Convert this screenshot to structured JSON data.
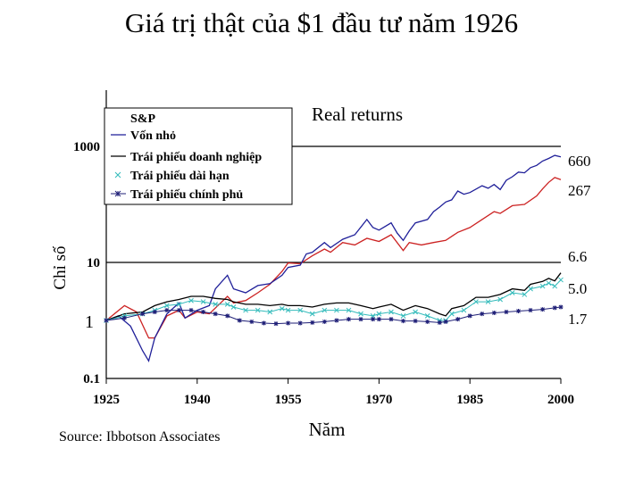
{
  "title": "Giá trị thật của $1 đầu tư năm 1926",
  "source": "Source: Ibbotson Associates",
  "chart_data": {
    "type": "line",
    "title": "Real returns",
    "xlabel": "Năm",
    "ylabel": "Chỉ số",
    "y_scale": "log",
    "xlim": [
      1925,
      2000
    ],
    "ylim": [
      0.1,
      10000
    ],
    "x_ticks": [
      "1925",
      "1940",
      "1955",
      "1970",
      "1985",
      "2000"
    ],
    "y_ticks": [
      "0.1",
      "1",
      "10",
      "1000"
    ],
    "reference_lines": [
      1000,
      10
    ],
    "annotations": [
      "660",
      "267",
      "6.6",
      "5.0",
      "1.7",
      "1"
    ],
    "legend_placement": "top-left",
    "series": [
      {
        "name": "S&P",
        "color": "#cc2222",
        "style": "line",
        "end_label": "267",
        "points": [
          [
            1925,
            1
          ],
          [
            1928,
            1.8
          ],
          [
            1930,
            1.4
          ],
          [
            1932,
            0.5
          ],
          [
            1933,
            0.5
          ],
          [
            1935,
            1.2
          ],
          [
            1937,
            1.5
          ],
          [
            1938,
            1.1
          ],
          [
            1940,
            1.4
          ],
          [
            1942,
            1.3
          ],
          [
            1945,
            2.6
          ],
          [
            1946,
            2.0
          ],
          [
            1948,
            2.2
          ],
          [
            1950,
            3.0
          ],
          [
            1952,
            4.2
          ],
          [
            1954,
            7.0
          ],
          [
            1955,
            9.8
          ],
          [
            1957,
            9.5
          ],
          [
            1959,
            13
          ],
          [
            1961,
            17
          ],
          [
            1962,
            15
          ],
          [
            1964,
            22
          ],
          [
            1966,
            20
          ],
          [
            1968,
            26
          ],
          [
            1970,
            23
          ],
          [
            1972,
            30
          ],
          [
            1974,
            16
          ],
          [
            1975,
            22
          ],
          [
            1977,
            20
          ],
          [
            1979,
            22
          ],
          [
            1981,
            24
          ],
          [
            1983,
            33
          ],
          [
            1985,
            40
          ],
          [
            1987,
            55
          ],
          [
            1989,
            75
          ],
          [
            1990,
            70
          ],
          [
            1992,
            95
          ],
          [
            1994,
            100
          ],
          [
            1996,
            140
          ],
          [
            1997,
            185
          ],
          [
            1998,
            240
          ],
          [
            1999,
            290
          ],
          [
            2000,
            267
          ]
        ]
      },
      {
        "name": "Vốn nhỏ",
        "color": "#1f1f99",
        "style": "line",
        "end_label": "660",
        "points": [
          [
            1925,
            1
          ],
          [
            1927,
            1.2
          ],
          [
            1929,
            0.8
          ],
          [
            1931,
            0.3
          ],
          [
            1932,
            0.2
          ],
          [
            1933,
            0.5
          ],
          [
            1935,
            1.3
          ],
          [
            1937,
            2.0
          ],
          [
            1938,
            1.1
          ],
          [
            1940,
            1.5
          ],
          [
            1942,
            1.8
          ],
          [
            1943,
            3.5
          ],
          [
            1945,
            6.0
          ],
          [
            1946,
            3.5
          ],
          [
            1948,
            3.0
          ],
          [
            1950,
            4.0
          ],
          [
            1952,
            4.3
          ],
          [
            1954,
            6.0
          ],
          [
            1955,
            8.2
          ],
          [
            1957,
            9.0
          ],
          [
            1958,
            14
          ],
          [
            1959,
            15
          ],
          [
            1961,
            22
          ],
          [
            1962,
            18
          ],
          [
            1964,
            25
          ],
          [
            1966,
            30
          ],
          [
            1968,
            55
          ],
          [
            1969,
            40
          ],
          [
            1970,
            36
          ],
          [
            1972,
            48
          ],
          [
            1973,
            32
          ],
          [
            1974,
            24
          ],
          [
            1975,
            35
          ],
          [
            1976,
            48
          ],
          [
            1978,
            55
          ],
          [
            1979,
            75
          ],
          [
            1980,
            90
          ],
          [
            1981,
            110
          ],
          [
            1982,
            120
          ],
          [
            1983,
            170
          ],
          [
            1984,
            150
          ],
          [
            1985,
            160
          ],
          [
            1987,
            210
          ],
          [
            1988,
            190
          ],
          [
            1989,
            220
          ],
          [
            1990,
            180
          ],
          [
            1991,
            260
          ],
          [
            1992,
            300
          ],
          [
            1993,
            360
          ],
          [
            1994,
            350
          ],
          [
            1995,
            430
          ],
          [
            1996,
            470
          ],
          [
            1997,
            560
          ],
          [
            1998,
            620
          ],
          [
            1999,
            700
          ],
          [
            2000,
            660
          ]
        ]
      },
      {
        "name": "Trái phiếu doanh nghiệp",
        "color": "#000000",
        "style": "line",
        "end_label": "6.6",
        "points": [
          [
            1925,
            1
          ],
          [
            1928,
            1.3
          ],
          [
            1931,
            1.4
          ],
          [
            1933,
            1.8
          ],
          [
            1935,
            2.1
          ],
          [
            1937,
            2.3
          ],
          [
            1939,
            2.6
          ],
          [
            1941,
            2.6
          ],
          [
            1943,
            2.4
          ],
          [
            1945,
            2.3
          ],
          [
            1946,
            2.1
          ],
          [
            1948,
            1.9
          ],
          [
            1950,
            1.9
          ],
          [
            1952,
            1.8
          ],
          [
            1954,
            1.9
          ],
          [
            1955,
            1.8
          ],
          [
            1957,
            1.8
          ],
          [
            1959,
            1.7
          ],
          [
            1961,
            1.9
          ],
          [
            1963,
            2.0
          ],
          [
            1965,
            2.0
          ],
          [
            1967,
            1.8
          ],
          [
            1969,
            1.6
          ],
          [
            1970,
            1.7
          ],
          [
            1972,
            1.9
          ],
          [
            1974,
            1.5
          ],
          [
            1976,
            1.8
          ],
          [
            1978,
            1.6
          ],
          [
            1980,
            1.3
          ],
          [
            1981,
            1.2
          ],
          [
            1982,
            1.6
          ],
          [
            1984,
            1.8
          ],
          [
            1986,
            2.5
          ],
          [
            1988,
            2.5
          ],
          [
            1990,
            2.8
          ],
          [
            1992,
            3.5
          ],
          [
            1994,
            3.3
          ],
          [
            1995,
            4.2
          ],
          [
            1997,
            4.7
          ],
          [
            1998,
            5.3
          ],
          [
            1999,
            4.8
          ],
          [
            2000,
            6.6
          ]
        ]
      },
      {
        "name": "Trái phiếu dài hạn",
        "color": "#33bbbb",
        "style": "x-markers",
        "end_label": "5.0",
        "points": [
          [
            1925,
            1
          ],
          [
            1928,
            1.2
          ],
          [
            1931,
            1.3
          ],
          [
            1933,
            1.5
          ],
          [
            1935,
            1.8
          ],
          [
            1937,
            1.9
          ],
          [
            1939,
            2.2
          ],
          [
            1941,
            2.1
          ],
          [
            1943,
            1.9
          ],
          [
            1945,
            1.9
          ],
          [
            1946,
            1.7
          ],
          [
            1948,
            1.5
          ],
          [
            1950,
            1.5
          ],
          [
            1952,
            1.4
          ],
          [
            1954,
            1.6
          ],
          [
            1955,
            1.5
          ],
          [
            1957,
            1.5
          ],
          [
            1959,
            1.3
          ],
          [
            1961,
            1.5
          ],
          [
            1963,
            1.5
          ],
          [
            1965,
            1.5
          ],
          [
            1967,
            1.3
          ],
          [
            1969,
            1.2
          ],
          [
            1970,
            1.3
          ],
          [
            1972,
            1.4
          ],
          [
            1974,
            1.2
          ],
          [
            1976,
            1.4
          ],
          [
            1978,
            1.2
          ],
          [
            1980,
            1.0
          ],
          [
            1981,
            1.0
          ],
          [
            1982,
            1.3
          ],
          [
            1984,
            1.5
          ],
          [
            1986,
            2.1
          ],
          [
            1988,
            2.1
          ],
          [
            1990,
            2.3
          ],
          [
            1992,
            3.0
          ],
          [
            1994,
            2.8
          ],
          [
            1995,
            3.5
          ],
          [
            1997,
            3.9
          ],
          [
            1998,
            4.4
          ],
          [
            1999,
            3.9
          ],
          [
            2000,
            5.0
          ]
        ]
      },
      {
        "name": "Trái phiếu chính phủ",
        "color": "#1f1f77",
        "style": "star-markers",
        "end_label": "1.7",
        "points": [
          [
            1925,
            1
          ],
          [
            1928,
            1.1
          ],
          [
            1931,
            1.3
          ],
          [
            1933,
            1.4
          ],
          [
            1935,
            1.5
          ],
          [
            1937,
            1.5
          ],
          [
            1939,
            1.5
          ],
          [
            1941,
            1.4
          ],
          [
            1943,
            1.3
          ],
          [
            1945,
            1.2
          ],
          [
            1947,
            1.0
          ],
          [
            1949,
            0.95
          ],
          [
            1951,
            0.9
          ],
          [
            1953,
            0.88
          ],
          [
            1955,
            0.9
          ],
          [
            1957,
            0.9
          ],
          [
            1959,
            0.92
          ],
          [
            1961,
            0.95
          ],
          [
            1963,
            1.0
          ],
          [
            1965,
            1.05
          ],
          [
            1967,
            1.05
          ],
          [
            1969,
            1.05
          ],
          [
            1970,
            1.05
          ],
          [
            1972,
            1.05
          ],
          [
            1974,
            0.98
          ],
          [
            1976,
            0.98
          ],
          [
            1978,
            0.95
          ],
          [
            1980,
            0.92
          ],
          [
            1981,
            0.95
          ],
          [
            1983,
            1.05
          ],
          [
            1985,
            1.2
          ],
          [
            1987,
            1.3
          ],
          [
            1989,
            1.35
          ],
          [
            1991,
            1.4
          ],
          [
            1993,
            1.45
          ],
          [
            1995,
            1.5
          ],
          [
            1997,
            1.55
          ],
          [
            1999,
            1.65
          ],
          [
            2000,
            1.7
          ]
        ]
      }
    ]
  }
}
